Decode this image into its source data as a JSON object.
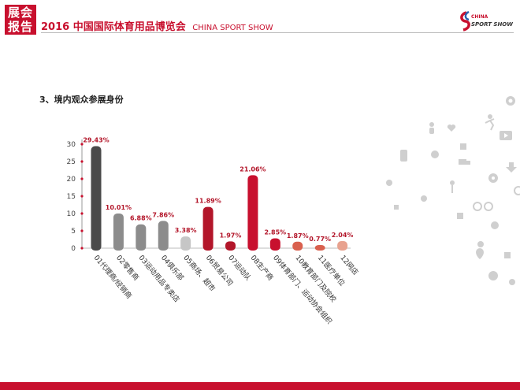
{
  "header": {
    "badge_line1": "展会",
    "badge_line2": "报告",
    "title_year": "2016",
    "title_cn": "中国国际体育用品博览会",
    "title_en": "CHINA SPORT SHOW",
    "logo_text1": "CHINA",
    "logo_text2": "SPORT SHOW"
  },
  "section": {
    "title": "3、境内观众参展身份"
  },
  "colors": {
    "brand_red": "#c8102e",
    "dark_gray": "#4a4a4a",
    "mid_gray": "#8c8c8c",
    "light_gray": "#c6c6c6",
    "dark_red": "#b3162a",
    "coral": "#d9604e",
    "salmon": "#e8a28f"
  },
  "chart_data": {
    "type": "bar",
    "categories": [
      "01代理商/经销商",
      "02零售商",
      "03运动用品专卖店",
      "04俱乐部",
      "05商场、超市",
      "06贸易公司",
      "07运动队",
      "08生产商",
      "09体育部门、运动协会组织",
      "10教育部门及院校",
      "11医疗单位",
      "12网店"
    ],
    "values": [
      29.43,
      10.01,
      6.88,
      7.86,
      3.38,
      11.89,
      1.97,
      21.06,
      2.85,
      1.87,
      0.77,
      2.04
    ],
    "value_labels": [
      "29.43%",
      "10.01%",
      "6.88%",
      "7.86%",
      "3.38%",
      "11.89%",
      "1.97%",
      "21.06%",
      "2.85%",
      "1.87%",
      "0.77%",
      "2.04%"
    ],
    "bar_colors": [
      "#4a4a4a",
      "#8c8c8c",
      "#8c8c8c",
      "#8c8c8c",
      "#c6c6c6",
      "#b3162a",
      "#b3162a",
      "#c8102e",
      "#c8102e",
      "#d9604e",
      "#d9604e",
      "#e8a28f"
    ],
    "y_ticks": [
      0,
      5,
      10,
      15,
      20,
      25,
      30
    ],
    "ylim": [
      0,
      30
    ],
    "xlabel": "",
    "ylabel": "",
    "grid": false
  },
  "decor": {
    "icons": [
      "person-icon",
      "heart-icon",
      "tag-icon",
      "wheelchair-icon",
      "runner-icon",
      "tv-icon",
      "smartphone-icon",
      "chat-icon",
      "truck-icon",
      "download-icon",
      "soccer-icon",
      "bicycle-icon",
      "golf-icon",
      "map-pin-icon",
      "gear-icon"
    ]
  }
}
